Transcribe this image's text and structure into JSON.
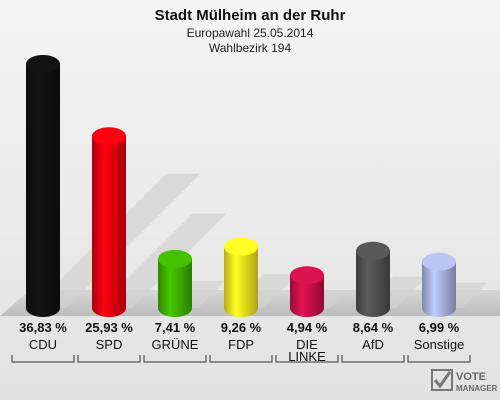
{
  "chart_data": {
    "type": "bar",
    "title": "Stadt Mülheim an der Ruhr",
    "subtitle": "Europawahl 25.05.2014",
    "subtitle2": "Wahlbezirk 194",
    "categories": [
      "CDU",
      "SPD",
      "GRÜNE",
      "FDP",
      "DIE LINKE",
      "AfD",
      "Sonstige"
    ],
    "values": [
      36.83,
      25.93,
      7.41,
      9.26,
      4.94,
      8.64,
      6.99
    ],
    "value_labels": [
      "36,83 %",
      "25,93 %",
      "7,41 %",
      "9,26 %",
      "4,94 %",
      "8,64 %",
      "6,99 %"
    ],
    "colors": [
      "#111111",
      "#e8000f",
      "#3cb000",
      "#f5e61e",
      "#c8104a",
      "#505050",
      "#a8b4e0"
    ],
    "ylim": [
      0,
      40
    ],
    "grid": false
  },
  "logo": {
    "line1": "VOTE",
    "line2": "MANAGER"
  }
}
